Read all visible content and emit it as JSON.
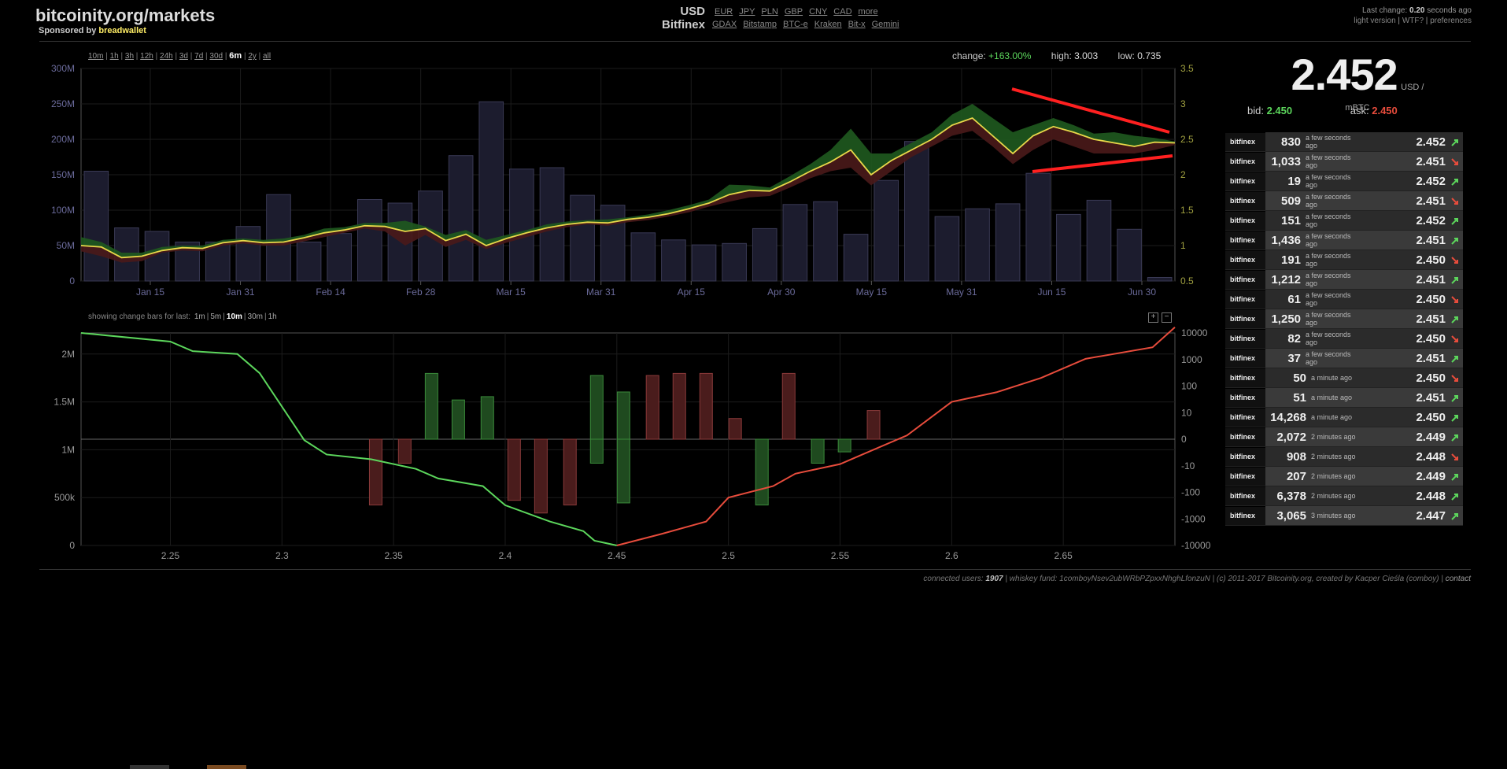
{
  "header": {
    "site_title": "bitcoinity.org/markets",
    "sponsor_prefix": "Sponsored by",
    "sponsor_link": "breadwallet",
    "currency_selected": "USD",
    "exchange_selected": "Bitfinex",
    "currencies": [
      "EUR",
      "JPY",
      "PLN",
      "GBP",
      "CNY",
      "CAD",
      "more"
    ],
    "exchanges": [
      "GDAX",
      "Bitstamp",
      "BTC-e",
      "Kraken",
      "Bit-x",
      "Gemini"
    ],
    "last_change_label": "Last change:",
    "last_change_value": "0.20",
    "last_change_suffix": "seconds ago",
    "links": [
      "light version",
      "WTF?",
      "preferences"
    ]
  },
  "timeframes": [
    "10m",
    "1h",
    "3h",
    "12h",
    "24h",
    "3d",
    "7d",
    "30d",
    "6m",
    "2y",
    "all"
  ],
  "active_timeframe": "6m",
  "stats": {
    "change_label": "change:",
    "change_value": "+163.00%",
    "high_label": "high:",
    "high_value": "3.003",
    "low_label": "low:",
    "low_value": "0.735"
  },
  "changebars": {
    "label": "showing change bars for last:",
    "options": [
      "1m",
      "5m",
      "10m",
      "30m",
      "1h"
    ],
    "active": "10m",
    "zoom_in": "+",
    "zoom_out": "−"
  },
  "price": {
    "value": "2.452",
    "unit": "USD / mBTC",
    "bid_label": "bid:",
    "bid": "2.450",
    "ask_label": "ask:",
    "ask": "2.450"
  },
  "trades": [
    {
      "exchange": "bitfinex",
      "amount": "830",
      "age": "a few seconds ago",
      "price": "2.452",
      "dir": "up"
    },
    {
      "exchange": "bitfinex",
      "amount": "1,033",
      "age": "a few seconds ago",
      "price": "2.451",
      "dir": "down"
    },
    {
      "exchange": "bitfinex",
      "amount": "19",
      "age": "a few seconds ago",
      "price": "2.452",
      "dir": "up"
    },
    {
      "exchange": "bitfinex",
      "amount": "509",
      "age": "a few seconds ago",
      "price": "2.451",
      "dir": "down"
    },
    {
      "exchange": "bitfinex",
      "amount": "151",
      "age": "a few seconds ago",
      "price": "2.452",
      "dir": "up"
    },
    {
      "exchange": "bitfinex",
      "amount": "1,436",
      "age": "a few seconds ago",
      "price": "2.451",
      "dir": "up"
    },
    {
      "exchange": "bitfinex",
      "amount": "191",
      "age": "a few seconds ago",
      "price": "2.450",
      "dir": "down"
    },
    {
      "exchange": "bitfinex",
      "amount": "1,212",
      "age": "a few seconds ago",
      "price": "2.451",
      "dir": "up"
    },
    {
      "exchange": "bitfinex",
      "amount": "61",
      "age": "a few seconds ago",
      "price": "2.450",
      "dir": "down"
    },
    {
      "exchange": "bitfinex",
      "amount": "1,250",
      "age": "a few seconds ago",
      "price": "2.451",
      "dir": "up"
    },
    {
      "exchange": "bitfinex",
      "amount": "82",
      "age": "a few seconds ago",
      "price": "2.450",
      "dir": "down"
    },
    {
      "exchange": "bitfinex",
      "amount": "37",
      "age": "a few seconds ago",
      "price": "2.451",
      "dir": "up"
    },
    {
      "exchange": "bitfinex",
      "amount": "50",
      "age": "a minute ago",
      "price": "2.450",
      "dir": "down"
    },
    {
      "exchange": "bitfinex",
      "amount": "51",
      "age": "a minute ago",
      "price": "2.451",
      "dir": "up"
    },
    {
      "exchange": "bitfinex",
      "amount": "14,268",
      "age": "a minute ago",
      "price": "2.450",
      "dir": "up"
    },
    {
      "exchange": "bitfinex",
      "amount": "2,072",
      "age": "2 minutes ago",
      "price": "2.449",
      "dir": "up"
    },
    {
      "exchange": "bitfinex",
      "amount": "908",
      "age": "2 minutes ago",
      "price": "2.448",
      "dir": "down"
    },
    {
      "exchange": "bitfinex",
      "amount": "207",
      "age": "2 minutes ago",
      "price": "2.449",
      "dir": "up"
    },
    {
      "exchange": "bitfinex",
      "amount": "6,378",
      "age": "2 minutes ago",
      "price": "2.448",
      "dir": "up"
    },
    {
      "exchange": "bitfinex",
      "amount": "3,065",
      "age": "3 minutes ago",
      "price": "2.447",
      "dir": "up"
    }
  ],
  "footer": {
    "connected_label": "connected users:",
    "connected": "1907",
    "rest": "| whiskey fund: 1comboyNsev2ubWRbPZpxxNhghLfonzuN | (c) 2011-2017 Bitcoinity.org, created by Kacper Cieśla (comboy) |",
    "contact": "contact"
  },
  "colors": {
    "up": "#5cd65c",
    "down": "#e74c3c",
    "price_line": "#e8d84a",
    "trend": "#ff2020"
  },
  "chart_data": [
    {
      "type": "bar+line",
      "x_tick_labels": [
        "Jan 15",
        "Jan 31",
        "Feb 14",
        "Feb 28",
        "Mar 15",
        "Mar 31",
        "Apr 15",
        "Apr 30",
        "May 15",
        "May 31",
        "Jun 15",
        "Jun 30"
      ],
      "y_left_ticks": [
        "0",
        "50M",
        "100M",
        "150M",
        "200M",
        "250M",
        "300M"
      ],
      "y_right_ticks": [
        "0.5",
        "1",
        "1.5",
        "2",
        "2.5",
        "3",
        "3.5"
      ],
      "ylim_left": [
        0,
        300000000
      ],
      "ylim_right": [
        0.5,
        3.5
      ],
      "volume": [
        155,
        75,
        70,
        55,
        55,
        77,
        122,
        55,
        67,
        115,
        110,
        127,
        177,
        253,
        158,
        160,
        121,
        107,
        68,
        58,
        51,
        53,
        74,
        108,
        112,
        66,
        142,
        197,
        91,
        102,
        109,
        152,
        94,
        114,
        73,
        5
      ],
      "price": [
        1.0,
        0.98,
        0.83,
        0.85,
        0.93,
        0.97,
        0.96,
        1.04,
        1.07,
        1.04,
        1.05,
        1.11,
        1.18,
        1.22,
        1.28,
        1.27,
        1.2,
        1.24,
        1.07,
        1.16,
        1.0,
        1.1,
        1.18,
        1.25,
        1.3,
        1.33,
        1.32,
        1.37,
        1.4,
        1.45,
        1.52,
        1.6,
        1.72,
        1.78,
        1.77,
        1.9,
        2.05,
        2.18,
        2.35,
        2.0,
        2.2,
        2.35,
        2.5,
        2.7,
        2.8,
        2.55,
        2.3,
        2.55,
        2.68,
        2.6,
        2.5,
        2.45,
        2.4,
        2.46,
        2.45
      ],
      "price_high": [
        1.12,
        1.05,
        0.9,
        0.9,
        0.98,
        1.0,
        1.0,
        1.08,
        1.1,
        1.08,
        1.1,
        1.15,
        1.24,
        1.26,
        1.32,
        1.32,
        1.35,
        1.27,
        1.15,
        1.22,
        1.08,
        1.15,
        1.22,
        1.3,
        1.34,
        1.36,
        1.37,
        1.4,
        1.44,
        1.5,
        1.57,
        1.65,
        1.86,
        1.85,
        1.82,
        1.98,
        2.15,
        2.35,
        2.65,
        2.3,
        2.3,
        2.45,
        2.6,
        2.85,
        3.0,
        2.8,
        2.6,
        2.7,
        2.8,
        2.7,
        2.58,
        2.6,
        2.55,
        2.52,
        2.47
      ],
      "price_low": [
        0.92,
        0.85,
        0.76,
        0.78,
        0.9,
        0.93,
        0.92,
        1.0,
        1.03,
        1.0,
        1.0,
        1.06,
        1.12,
        1.18,
        1.24,
        1.2,
        1.0,
        1.15,
        0.98,
        1.08,
        0.95,
        1.04,
        1.12,
        1.2,
        1.26,
        1.3,
        1.28,
        1.33,
        1.36,
        1.41,
        1.47,
        1.55,
        1.62,
        1.68,
        1.7,
        1.82,
        1.95,
        2.05,
        2.1,
        1.85,
        2.05,
        2.25,
        2.4,
        2.55,
        2.62,
        2.4,
        2.15,
        2.35,
        2.5,
        2.4,
        2.3,
        2.3,
        2.3,
        2.35,
        2.42
      ]
    },
    {
      "type": "depth+bars",
      "x_tick_labels": [
        "2.25",
        "2.3",
        "2.35",
        "2.4",
        "2.45",
        "2.5",
        "2.55",
        "2.6",
        "2.65"
      ],
      "y_left_ticks": [
        "0",
        "500k",
        "1M",
        "1.5M",
        "2M"
      ],
      "y_right_ticks": [
        "-10000",
        "-1000",
        "-100",
        "-10",
        "0",
        "10",
        "100",
        "1000",
        "10000"
      ],
      "xlim": [
        2.21,
        2.7
      ],
      "bids": [
        [
          2.21,
          2.22
        ],
        [
          2.25,
          2.13
        ],
        [
          2.26,
          2.03
        ],
        [
          2.28,
          2.0
        ],
        [
          2.29,
          1.8
        ],
        [
          2.31,
          1.1
        ],
        [
          2.32,
          0.95
        ],
        [
          2.34,
          0.9
        ],
        [
          2.36,
          0.8
        ],
        [
          2.37,
          0.7
        ],
        [
          2.39,
          0.62
        ],
        [
          2.4,
          0.42
        ],
        [
          2.42,
          0.25
        ],
        [
          2.435,
          0.15
        ],
        [
          2.44,
          0.05
        ],
        [
          2.45,
          0.0
        ]
      ],
      "asks": [
        [
          2.45,
          0.0
        ],
        [
          2.47,
          0.12
        ],
        [
          2.49,
          0.25
        ],
        [
          2.5,
          0.5
        ],
        [
          2.52,
          0.62
        ],
        [
          2.53,
          0.75
        ],
        [
          2.55,
          0.85
        ],
        [
          2.56,
          0.95
        ],
        [
          2.58,
          1.15
        ],
        [
          2.6,
          1.5
        ],
        [
          2.62,
          1.6
        ],
        [
          2.64,
          1.75
        ],
        [
          2.66,
          1.95
        ],
        [
          2.69,
          2.07
        ],
        [
          2.7,
          2.28
        ]
      ],
      "change_bars": [
        {
          "x": 2.342,
          "v": -300,
          "dir": "down"
        },
        {
          "x": 2.355,
          "v": -8,
          "dir": "down"
        },
        {
          "x": 2.367,
          "v": 300,
          "dir": "up"
        },
        {
          "x": 2.379,
          "v": 30,
          "dir": "up"
        },
        {
          "x": 2.392,
          "v": 40,
          "dir": "up"
        },
        {
          "x": 2.404,
          "v": -200,
          "dir": "down"
        },
        {
          "x": 2.416,
          "v": -600,
          "dir": "down"
        },
        {
          "x": 2.429,
          "v": -300,
          "dir": "down"
        },
        {
          "x": 2.441,
          "v": -8,
          "dir": "up"
        },
        {
          "x": 2.441,
          "v": 250,
          "dir": "up"
        },
        {
          "x": 2.453,
          "v": -250,
          "dir": "up"
        },
        {
          "x": 2.453,
          "v": 60,
          "dir": "up"
        },
        {
          "x": 2.466,
          "v": 250,
          "dir": "down"
        },
        {
          "x": 2.478,
          "v": 300,
          "dir": "down"
        },
        {
          "x": 2.49,
          "v": 300,
          "dir": "down"
        },
        {
          "x": 2.503,
          "v": 6,
          "dir": "down"
        },
        {
          "x": 2.515,
          "v": -300,
          "dir": "up"
        },
        {
          "x": 2.527,
          "v": 300,
          "dir": "down"
        },
        {
          "x": 2.54,
          "v": -8,
          "dir": "up"
        },
        {
          "x": 2.552,
          "v": -3,
          "dir": "up"
        },
        {
          "x": 2.565,
          "v": 12,
          "dir": "down"
        }
      ]
    }
  ]
}
